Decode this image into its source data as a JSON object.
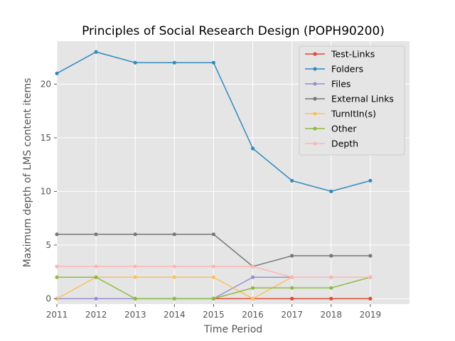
{
  "chart_data": {
    "type": "line",
    "title": "Principles of Social Research Design (POPH90200)",
    "xlabel": "Time Period",
    "ylabel": "Maximum depth of LMS content items",
    "xlim": [
      2011,
      2020
    ],
    "ylim": [
      -0.5,
      24
    ],
    "xticks": [
      "2011",
      "2012",
      "2013",
      "2014",
      "2015",
      "2016",
      "2017",
      "2018",
      "2019"
    ],
    "yticks": [
      "0",
      "5",
      "10",
      "15",
      "20"
    ],
    "grid": true,
    "legend_position": "top-right",
    "series": [
      {
        "name": "Test-Links",
        "color": "#E24A33",
        "x": [
          2015,
          2016,
          2017,
          2018,
          2019
        ],
        "y": [
          0,
          0,
          0,
          0,
          0
        ]
      },
      {
        "name": "Folders",
        "color": "#348ABD",
        "x": [
          2011,
          2012,
          2013,
          2014,
          2015,
          2016,
          2017,
          2018,
          2019
        ],
        "y": [
          21,
          23,
          22,
          22,
          22,
          14,
          11,
          10,
          11
        ]
      },
      {
        "name": "Files",
        "color": "#988ED5",
        "x": [
          2011,
          2012,
          2013,
          2014,
          2015,
          2016,
          2017,
          2018,
          2019
        ],
        "y": [
          0,
          0,
          0,
          0,
          0,
          2,
          2,
          2,
          2
        ]
      },
      {
        "name": "External Links",
        "color": "#777777",
        "x": [
          2011,
          2012,
          2013,
          2014,
          2015,
          2016,
          2017,
          2018,
          2019
        ],
        "y": [
          6,
          6,
          6,
          6,
          6,
          3,
          4,
          4,
          4
        ]
      },
      {
        "name": "TurnItIn(s)",
        "color": "#FBC15E",
        "x": [
          2011,
          2012,
          2013,
          2014,
          2015,
          2016,
          2017,
          2018,
          2019
        ],
        "y": [
          0,
          2,
          2,
          2,
          2,
          0,
          2,
          2,
          2
        ]
      },
      {
        "name": "Other",
        "color": "#8EBA42",
        "x": [
          2011,
          2012,
          2013,
          2014,
          2015,
          2016,
          2017,
          2018,
          2019
        ],
        "y": [
          2,
          2,
          0,
          0,
          0,
          1,
          1,
          1,
          2
        ]
      },
      {
        "name": "Depth",
        "color": "#FFB5B8",
        "x": [
          2011,
          2012,
          2013,
          2014,
          2015,
          2016,
          2017,
          2018,
          2019
        ],
        "y": [
          3,
          3,
          3,
          3,
          3,
          3,
          2,
          2,
          2
        ]
      }
    ]
  }
}
